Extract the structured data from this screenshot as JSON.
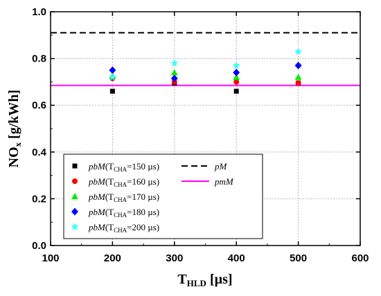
{
  "chart_data": {
    "type": "scatter",
    "xlabel": "T",
    "xlabel_sub": "HLD",
    "xlabel_unit": " [µs]",
    "ylabel": "NO",
    "ylabel_sub": "x",
    "ylabel_unit": " [g/kWh]",
    "xlim": [
      100,
      600
    ],
    "ylim": [
      0.0,
      1.0
    ],
    "xticks": [
      "100",
      "200",
      "300",
      "400",
      "500",
      "600"
    ],
    "yticks": [
      "0.0",
      "0.2",
      "0.4",
      "0.6",
      "0.8",
      "1.0"
    ],
    "grid": true,
    "legend_position": "bottom-left",
    "series": [
      {
        "name": "pbM(TCHA=150 µs)",
        "label_main": "pbM",
        "label_open": "(T",
        "label_sub": "CHA",
        "label_close": "=150 µs)",
        "marker": "square",
        "color": "#000000",
        "x": [
          200,
          300,
          400,
          500
        ],
        "y": [
          0.66,
          0.695,
          0.66,
          0.695
        ]
      },
      {
        "name": "pbM(TCHA=160 µs)",
        "label_main": "pbM",
        "label_open": "(T",
        "label_sub": "CHA",
        "label_close": "=160 µs)",
        "marker": "circle",
        "color": "#ff0000",
        "x": [
          200,
          300,
          400,
          500
        ],
        "y": [
          0.715,
          0.7,
          0.7,
          0.695
        ]
      },
      {
        "name": "pbM(TCHA=170 µs)",
        "label_main": "pbM",
        "label_open": "(T",
        "label_sub": "CHA",
        "label_close": "=170 µs)",
        "marker": "triangle",
        "color": "#00ee00",
        "x": [
          200,
          300,
          400,
          500
        ],
        "y": [
          0.725,
          0.74,
          0.72,
          0.72
        ]
      },
      {
        "name": "pbM(TCHA=180 µs)",
        "label_main": "pbM",
        "label_open": "(T",
        "label_sub": "CHA",
        "label_close": "=180 µs)",
        "marker": "diamond",
        "color": "#0000ff",
        "x": [
          200,
          300,
          400,
          500
        ],
        "y": [
          0.75,
          0.715,
          0.74,
          0.77
        ]
      },
      {
        "name": "pbM(TCHA=200 µs)",
        "label_main": "pbM",
        "label_open": "(T",
        "label_sub": "CHA",
        "label_close": "=200 µs)",
        "marker": "star",
        "color": "#33ffff",
        "x": [
          200,
          300,
          400,
          500
        ],
        "y": [
          0.72,
          0.78,
          0.77,
          0.83
        ]
      }
    ],
    "reference_lines": [
      {
        "name": "pM",
        "y": 0.91,
        "style": "dashed",
        "color": "#000000"
      },
      {
        "name": "pmM",
        "y": 0.685,
        "style": "solid",
        "color": "#ff00ff"
      }
    ]
  }
}
